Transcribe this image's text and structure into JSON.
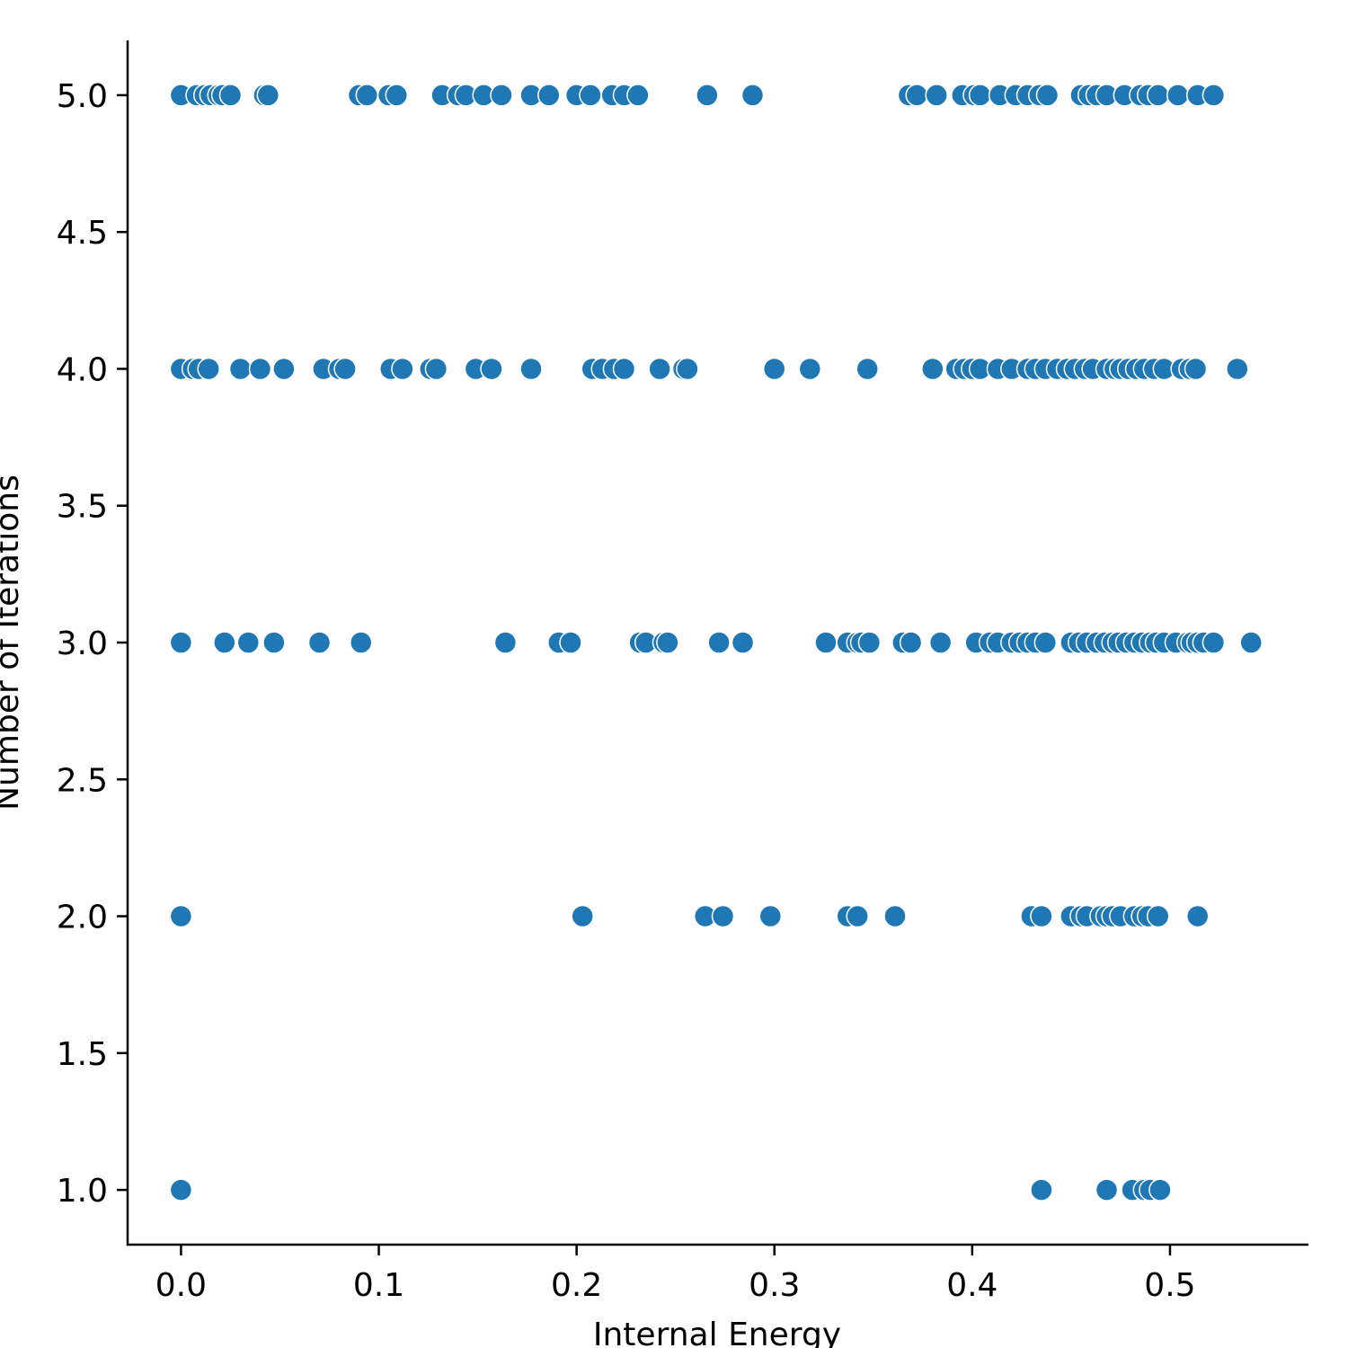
{
  "chart_data": {
    "type": "scatter",
    "title": "",
    "xlabel": "Internal Energy",
    "ylabel": "Number of Iterations",
    "xlim": [
      -0.027,
      0.57
    ],
    "ylim": [
      0.8,
      5.2
    ],
    "xticks": [
      0.0,
      0.1,
      0.2,
      0.3,
      0.4,
      0.5
    ],
    "xtick_labels": [
      "0.0",
      "0.1",
      "0.2",
      "0.3",
      "0.4",
      "0.5"
    ],
    "yticks": [
      1.0,
      1.5,
      2.0,
      2.5,
      3.0,
      3.5,
      4.0,
      4.5,
      5.0
    ],
    "ytick_labels": [
      "1.0",
      "1.5",
      "2.0",
      "2.5",
      "3.0",
      "3.5",
      "4.0",
      "4.5",
      "5.0"
    ],
    "grid": false,
    "legend": "none",
    "color": "#1f77b4",
    "series": [
      {
        "points": [
          [
            0.0,
            5
          ],
          [
            0.008,
            5
          ],
          [
            0.012,
            5
          ],
          [
            0.015,
            5
          ],
          [
            0.019,
            5
          ],
          [
            0.021,
            5
          ],
          [
            0.025,
            5
          ],
          [
            0.042,
            5
          ],
          [
            0.044,
            5
          ],
          [
            0.09,
            5
          ],
          [
            0.094,
            5
          ],
          [
            0.105,
            5
          ],
          [
            0.109,
            5
          ],
          [
            0.132,
            5
          ],
          [
            0.14,
            5
          ],
          [
            0.144,
            5
          ],
          [
            0.153,
            5
          ],
          [
            0.162,
            5
          ],
          [
            0.177,
            5
          ],
          [
            0.186,
            5
          ],
          [
            0.2,
            5
          ],
          [
            0.207,
            5
          ],
          [
            0.218,
            5
          ],
          [
            0.224,
            5
          ],
          [
            0.231,
            5
          ],
          [
            0.266,
            5
          ],
          [
            0.289,
            5
          ],
          [
            0.368,
            5
          ],
          [
            0.372,
            5
          ],
          [
            0.382,
            5
          ],
          [
            0.395,
            5
          ],
          [
            0.401,
            5
          ],
          [
            0.404,
            5
          ],
          [
            0.414,
            5
          ],
          [
            0.422,
            5
          ],
          [
            0.428,
            5
          ],
          [
            0.434,
            5
          ],
          [
            0.438,
            5
          ],
          [
            0.455,
            5
          ],
          [
            0.459,
            5
          ],
          [
            0.463,
            5
          ],
          [
            0.468,
            5
          ],
          [
            0.477,
            5
          ],
          [
            0.485,
            5
          ],
          [
            0.489,
            5
          ],
          [
            0.494,
            5
          ],
          [
            0.504,
            5
          ],
          [
            0.514,
            5
          ],
          [
            0.522,
            5
          ],
          [
            0.0,
            4
          ],
          [
            0.006,
            4
          ],
          [
            0.009,
            4
          ],
          [
            0.014,
            4
          ],
          [
            0.03,
            4
          ],
          [
            0.04,
            4
          ],
          [
            0.052,
            4
          ],
          [
            0.072,
            4
          ],
          [
            0.08,
            4
          ],
          [
            0.083,
            4
          ],
          [
            0.106,
            4
          ],
          [
            0.112,
            4
          ],
          [
            0.126,
            4
          ],
          [
            0.129,
            4
          ],
          [
            0.149,
            4
          ],
          [
            0.157,
            4
          ],
          [
            0.177,
            4
          ],
          [
            0.208,
            4
          ],
          [
            0.213,
            4
          ],
          [
            0.219,
            4
          ],
          [
            0.224,
            4
          ],
          [
            0.242,
            4
          ],
          [
            0.254,
            4
          ],
          [
            0.256,
            4
          ],
          [
            0.3,
            4
          ],
          [
            0.318,
            4
          ],
          [
            0.347,
            4
          ],
          [
            0.38,
            4
          ],
          [
            0.392,
            4
          ],
          [
            0.396,
            4
          ],
          [
            0.4,
            4
          ],
          [
            0.404,
            4
          ],
          [
            0.413,
            4
          ],
          [
            0.42,
            4
          ],
          [
            0.428,
            4
          ],
          [
            0.432,
            4
          ],
          [
            0.437,
            4
          ],
          [
            0.443,
            4
          ],
          [
            0.448,
            4
          ],
          [
            0.452,
            4
          ],
          [
            0.457,
            4
          ],
          [
            0.461,
            4
          ],
          [
            0.468,
            4
          ],
          [
            0.472,
            4
          ],
          [
            0.475,
            4
          ],
          [
            0.479,
            4
          ],
          [
            0.483,
            4
          ],
          [
            0.487,
            4
          ],
          [
            0.492,
            4
          ],
          [
            0.497,
            4
          ],
          [
            0.506,
            4
          ],
          [
            0.51,
            4
          ],
          [
            0.513,
            4
          ],
          [
            0.534,
            4
          ],
          [
            0.0,
            3
          ],
          [
            0.022,
            3
          ],
          [
            0.034,
            3
          ],
          [
            0.047,
            3
          ],
          [
            0.07,
            3
          ],
          [
            0.091,
            3
          ],
          [
            0.164,
            3
          ],
          [
            0.191,
            3
          ],
          [
            0.197,
            3
          ],
          [
            0.232,
            3
          ],
          [
            0.235,
            3
          ],
          [
            0.244,
            3
          ],
          [
            0.246,
            3
          ],
          [
            0.272,
            3
          ],
          [
            0.284,
            3
          ],
          [
            0.326,
            3
          ],
          [
            0.337,
            3
          ],
          [
            0.342,
            3
          ],
          [
            0.344,
            3
          ],
          [
            0.348,
            3
          ],
          [
            0.365,
            3
          ],
          [
            0.369,
            3
          ],
          [
            0.384,
            3
          ],
          [
            0.402,
            3
          ],
          [
            0.409,
            3
          ],
          [
            0.413,
            3
          ],
          [
            0.42,
            3
          ],
          [
            0.424,
            3
          ],
          [
            0.428,
            3
          ],
          [
            0.432,
            3
          ],
          [
            0.437,
            3
          ],
          [
            0.45,
            3
          ],
          [
            0.454,
            3
          ],
          [
            0.458,
            3
          ],
          [
            0.463,
            3
          ],
          [
            0.467,
            3
          ],
          [
            0.471,
            3
          ],
          [
            0.474,
            3
          ],
          [
            0.478,
            3
          ],
          [
            0.482,
            3
          ],
          [
            0.486,
            3
          ],
          [
            0.49,
            3
          ],
          [
            0.493,
            3
          ],
          [
            0.497,
            3
          ],
          [
            0.503,
            3
          ],
          [
            0.509,
            3
          ],
          [
            0.511,
            3
          ],
          [
            0.514,
            3
          ],
          [
            0.517,
            3
          ],
          [
            0.522,
            3
          ],
          [
            0.541,
            3
          ],
          [
            0.0,
            2
          ],
          [
            0.203,
            2
          ],
          [
            0.265,
            2
          ],
          [
            0.274,
            2
          ],
          [
            0.298,
            2
          ],
          [
            0.337,
            2
          ],
          [
            0.342,
            2
          ],
          [
            0.361,
            2
          ],
          [
            0.43,
            2
          ],
          [
            0.435,
            2
          ],
          [
            0.45,
            2
          ],
          [
            0.455,
            2
          ],
          [
            0.458,
            2
          ],
          [
            0.465,
            2
          ],
          [
            0.468,
            2
          ],
          [
            0.471,
            2
          ],
          [
            0.475,
            2
          ],
          [
            0.482,
            2
          ],
          [
            0.486,
            2
          ],
          [
            0.489,
            2
          ],
          [
            0.494,
            2
          ],
          [
            0.514,
            2
          ],
          [
            0.0,
            1
          ],
          [
            0.435,
            1
          ],
          [
            0.468,
            1
          ],
          [
            0.481,
            1
          ],
          [
            0.487,
            1
          ],
          [
            0.49,
            1
          ],
          [
            0.495,
            1
          ]
        ]
      }
    ]
  }
}
